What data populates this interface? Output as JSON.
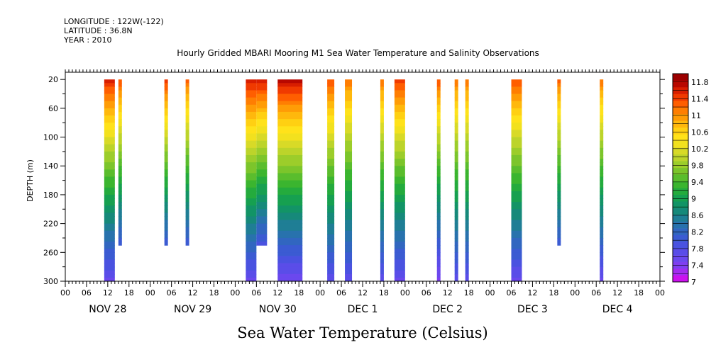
{
  "header": {
    "longitude": "LONGITUDE : 122W(-122)",
    "latitude": "LATITUDE : 36.8N",
    "year": "YEAR : 2010",
    "title": "Hourly Gridded MBARI Mooring M1 Sea Water Temperature and Salinity Observations"
  },
  "chart_data": {
    "type": "heatmap",
    "title": "Hourly Gridded MBARI Mooring M1 Sea Water Temperature and Salinity Observations",
    "xlabel": "Sea Water Temperature (Celsius)",
    "ylabel": "DEPTH (m)",
    "x_units": "hours since NOV 28 00",
    "xlim": [
      0,
      168
    ],
    "ylim": [
      300,
      10
    ],
    "y_ticks": [
      20,
      60,
      100,
      140,
      180,
      220,
      260,
      300
    ],
    "x_tick_labels": [
      "00",
      "06",
      "12",
      "18",
      "00",
      "06",
      "12",
      "18",
      "00",
      "06",
      "12",
      "18",
      "00",
      "06",
      "12",
      "18",
      "00",
      "06",
      "12",
      "18",
      "00",
      "06",
      "12",
      "18",
      "00",
      "06",
      "12",
      "18",
      "00"
    ],
    "day_labels": [
      "NOV 28",
      "NOV 29",
      "NOV 30",
      "DEC  1",
      "DEC  2",
      "DEC  3",
      "DEC  4"
    ],
    "colorbar": {
      "levels": [
        7,
        7.2,
        7.4,
        7.6,
        7.8,
        8,
        8.2,
        8.4,
        8.6,
        8.8,
        9,
        9.2,
        9.4,
        9.6,
        9.8,
        10,
        10.2,
        10.4,
        10.6,
        10.8,
        11,
        11.2,
        11.4,
        11.6,
        11.8,
        12
      ],
      "labels": [
        "7",
        "7.4",
        "7.8",
        "8.2",
        "8.6",
        "9",
        "9.4",
        "9.8",
        "10.2",
        "10.6",
        "11",
        "11.4",
        "11.8"
      ],
      "colors": [
        "#cc11ee",
        "#a22cf0",
        "#7f3ff0",
        "#6b48ee",
        "#5a4de8",
        "#4a52e0",
        "#3b5bd2",
        "#3166c0",
        "#2872ad",
        "#1f7e95",
        "#16897a",
        "#129466",
        "#16a050",
        "#24ab3d",
        "#3bb52f",
        "#5abd2d",
        "#7cc52b",
        "#9ccd2a",
        "#bcd42a",
        "#d8da27",
        "#f2e11e",
        "#ffe21a",
        "#ffd012",
        "#ffb80c",
        "#ff9c06",
        "#ff7e02",
        "#ff5e00",
        "#f03a00",
        "#d81e00",
        "#b80800",
        "#9c0000"
      ]
    },
    "segments": [
      {
        "start": 11,
        "end": 14,
        "top": 20,
        "bottom": 300,
        "surface": 11.6,
        "bottom_temp": 7.6
      },
      {
        "start": 15,
        "end": 16,
        "top": 20,
        "bottom": 250,
        "surface": 11.4,
        "bottom_temp": 8.0
      },
      {
        "start": 28,
        "end": 29,
        "top": 20,
        "bottom": 250,
        "surface": 11.5,
        "bottom_temp": 8.0
      },
      {
        "start": 34,
        "end": 35,
        "top": 20,
        "bottom": 250,
        "surface": 11.3,
        "bottom_temp": 8.0
      },
      {
        "start": 51,
        "end": 54,
        "top": 20,
        "bottom": 300,
        "surface": 11.7,
        "bottom_temp": 7.6
      },
      {
        "start": 54,
        "end": 57,
        "top": 20,
        "bottom": 250,
        "surface": 11.7,
        "bottom_temp": 7.9
      },
      {
        "start": 60,
        "end": 67,
        "top": 20,
        "bottom": 300,
        "surface": 11.8,
        "bottom_temp": 7.5
      },
      {
        "start": 74,
        "end": 76,
        "top": 20,
        "bottom": 300,
        "surface": 11.4,
        "bottom_temp": 7.7
      },
      {
        "start": 79,
        "end": 81,
        "top": 20,
        "bottom": 300,
        "surface": 11.2,
        "bottom_temp": 7.7
      },
      {
        "start": 89,
        "end": 90,
        "top": 20,
        "bottom": 300,
        "surface": 11.2,
        "bottom_temp": 7.7
      },
      {
        "start": 93,
        "end": 96,
        "top": 20,
        "bottom": 300,
        "surface": 11.5,
        "bottom_temp": 7.6
      },
      {
        "start": 105,
        "end": 106,
        "top": 20,
        "bottom": 300,
        "surface": 11.4,
        "bottom_temp": 7.4
      },
      {
        "start": 110,
        "end": 111,
        "top": 20,
        "bottom": 300,
        "surface": 11.2,
        "bottom_temp": 7.7
      },
      {
        "start": 113,
        "end": 114,
        "top": 20,
        "bottom": 300,
        "surface": 11.2,
        "bottom_temp": 7.7
      },
      {
        "start": 126,
        "end": 129,
        "top": 20,
        "bottom": 300,
        "surface": 11.4,
        "bottom_temp": 7.6
      },
      {
        "start": 139,
        "end": 140,
        "top": 20,
        "bottom": 250,
        "surface": 11.3,
        "bottom_temp": 8.0
      },
      {
        "start": 151,
        "end": 152,
        "top": 20,
        "bottom": 300,
        "surface": 11.2,
        "bottom_temp": 7.6
      }
    ]
  }
}
